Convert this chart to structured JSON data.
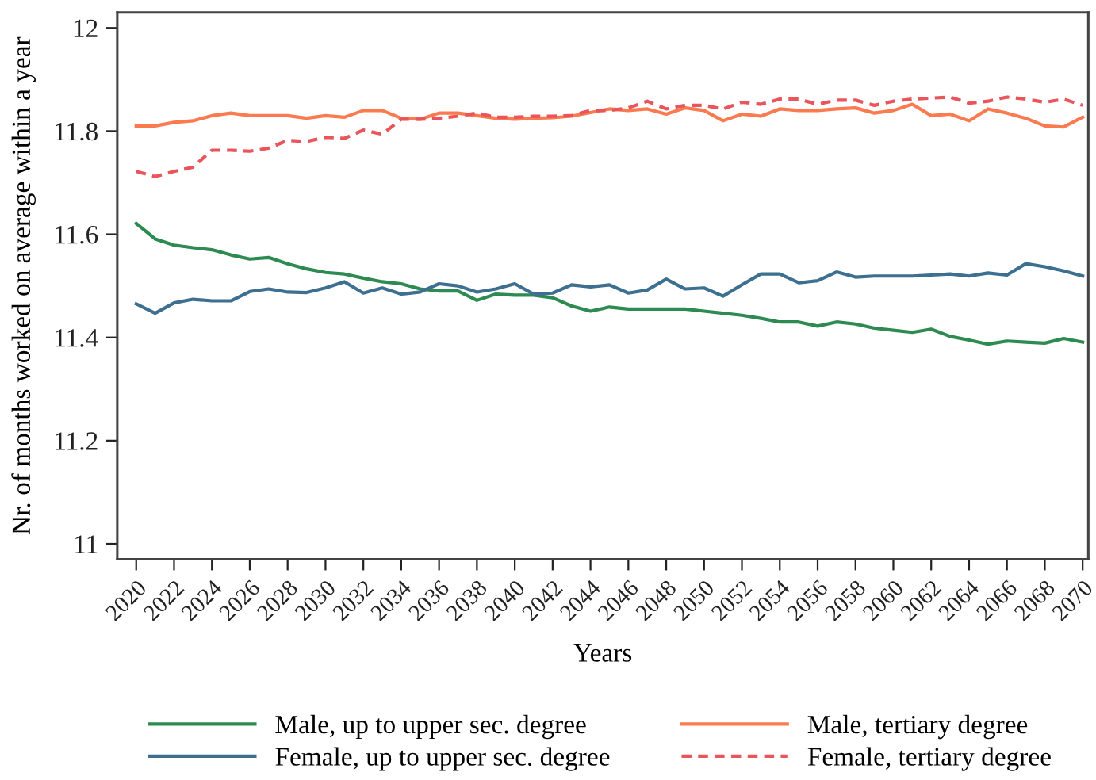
{
  "chart_data": {
    "type": "line",
    "xlabel": "Years",
    "ylabel": "Nr. of months worked on average within a year",
    "x": [
      2020,
      2021,
      2022,
      2023,
      2024,
      2025,
      2026,
      2027,
      2028,
      2029,
      2030,
      2031,
      2032,
      2033,
      2034,
      2035,
      2036,
      2037,
      2038,
      2039,
      2040,
      2041,
      2042,
      2043,
      2044,
      2045,
      2046,
      2047,
      2048,
      2049,
      2050,
      2051,
      2052,
      2053,
      2054,
      2055,
      2056,
      2057,
      2058,
      2059,
      2060,
      2061,
      2062,
      2063,
      2064,
      2065,
      2066,
      2067,
      2068,
      2069,
      2070
    ],
    "series": [
      {
        "name": "Male, up to upper sec. degree",
        "color": "#2d8a50",
        "line_style": "solid",
        "values": [
          11.621,
          11.591,
          11.579,
          11.574,
          11.57,
          11.56,
          11.552,
          11.555,
          11.543,
          11.533,
          11.526,
          11.523,
          11.515,
          11.508,
          11.504,
          11.494,
          11.49,
          11.49,
          11.472,
          11.484,
          11.482,
          11.482,
          11.477,
          11.461,
          11.451,
          11.459,
          11.455,
          11.455,
          11.455,
          11.455,
          11.451,
          11.447,
          11.443,
          11.437,
          11.43,
          11.43,
          11.422,
          11.43,
          11.426,
          11.418,
          11.414,
          11.41,
          11.416,
          11.402,
          11.395,
          11.387,
          11.393,
          11.391,
          11.389,
          11.398,
          11.391
        ]
      },
      {
        "name": "Female, up to upper sec. degree",
        "color": "#3d6f91",
        "line_style": "solid",
        "values": [
          11.465,
          11.447,
          11.467,
          11.474,
          11.471,
          11.471,
          11.489,
          11.494,
          11.488,
          11.487,
          11.496,
          11.508,
          11.486,
          11.496,
          11.484,
          11.488,
          11.504,
          11.5,
          11.488,
          11.494,
          11.504,
          11.484,
          11.486,
          11.502,
          11.498,
          11.502,
          11.486,
          11.492,
          11.513,
          11.494,
          11.496,
          11.48,
          11.502,
          11.523,
          11.523,
          11.506,
          11.51,
          11.527,
          11.517,
          11.519,
          11.519,
          11.519,
          11.521,
          11.523,
          11.519,
          11.525,
          11.521,
          11.543,
          11.537,
          11.529,
          11.519
        ]
      },
      {
        "name": "Male, tertiary degree",
        "color": "#fb7a4f",
        "line_style": "solid",
        "values": [
          11.81,
          11.81,
          11.817,
          11.82,
          11.83,
          11.835,
          11.83,
          11.83,
          11.83,
          11.825,
          11.83,
          11.827,
          11.84,
          11.84,
          11.825,
          11.823,
          11.835,
          11.835,
          11.83,
          11.825,
          11.823,
          11.825,
          11.826,
          11.829,
          11.836,
          11.843,
          11.84,
          11.843,
          11.833,
          11.845,
          11.84,
          11.82,
          11.833,
          11.829,
          11.843,
          11.84,
          11.84,
          11.843,
          11.845,
          11.835,
          11.84,
          11.852,
          11.83,
          11.833,
          11.82,
          11.843,
          11.835,
          11.825,
          11.81,
          11.808,
          11.827
        ]
      },
      {
        "name": "Female, tertiary degree",
        "color": "#e9555a",
        "line_style": "dashed",
        "values": [
          11.722,
          11.712,
          11.722,
          11.73,
          11.763,
          11.763,
          11.761,
          11.767,
          11.782,
          11.78,
          11.788,
          11.786,
          11.802,
          11.794,
          11.823,
          11.823,
          11.825,
          11.829,
          11.835,
          11.827,
          11.827,
          11.829,
          11.829,
          11.83,
          11.84,
          11.84,
          11.845,
          11.858,
          11.843,
          11.85,
          11.85,
          11.843,
          11.856,
          11.852,
          11.862,
          11.862,
          11.852,
          11.86,
          11.86,
          11.85,
          11.858,
          11.862,
          11.864,
          11.866,
          11.854,
          11.858,
          11.866,
          11.862,
          11.856,
          11.862,
          11.85
        ]
      }
    ],
    "xlim": [
      2019,
      2070.3
    ],
    "ylim": [
      10.97,
      12.03
    ],
    "xticks": [
      2020,
      2022,
      2024,
      2026,
      2028,
      2030,
      2032,
      2034,
      2036,
      2038,
      2040,
      2042,
      2044,
      2046,
      2048,
      2050,
      2052,
      2054,
      2056,
      2058,
      2060,
      2062,
      2064,
      2066,
      2068,
      2070
    ],
    "yticks": [
      11,
      11.2,
      11.4,
      11.6,
      11.8,
      12
    ],
    "grid": false,
    "legend": "bottom",
    "marker": "none"
  }
}
